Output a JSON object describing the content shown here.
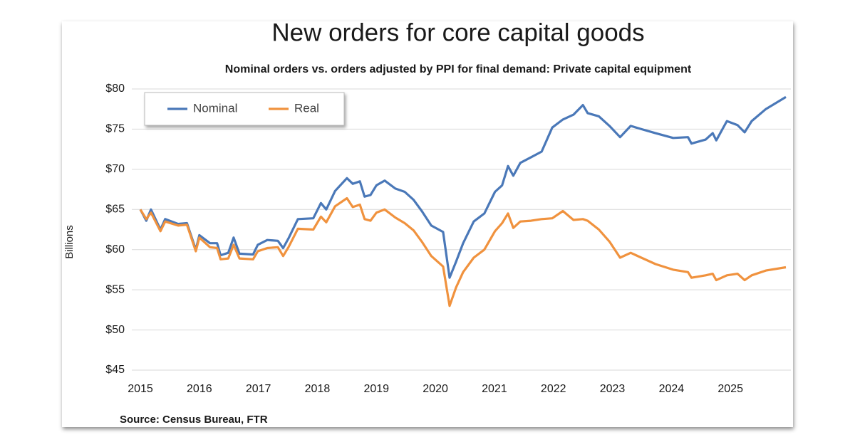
{
  "chart_data": {
    "type": "line",
    "title": "New orders for core capital goods",
    "subtitle": "Nominal orders vs. orders adjusted by PPI for final demand: Private capital equipment",
    "y_label": "Billions",
    "source": "Source: Census Bureau, FTR",
    "x": [
      2015.0,
      2015.1,
      2015.18,
      2015.34,
      2015.42,
      2015.64,
      2015.79,
      2015.94,
      2016.0,
      2016.18,
      2016.3,
      2016.36,
      2016.49,
      2016.58,
      2016.68,
      2016.91,
      2016.99,
      2017.15,
      2017.33,
      2017.42,
      2017.51,
      2017.67,
      2017.93,
      2018.06,
      2018.15,
      2018.3,
      2018.5,
      2018.6,
      2018.72,
      2018.8,
      2018.9,
      2019.0,
      2019.14,
      2019.32,
      2019.48,
      2019.63,
      2019.77,
      2019.93,
      2020.13,
      2020.24,
      2020.35,
      2020.47,
      2020.65,
      2020.83,
      2021.01,
      2021.13,
      2021.23,
      2021.32,
      2021.44,
      2021.62,
      2021.8,
      2021.98,
      2022.16,
      2022.34,
      2022.5,
      2022.58,
      2022.77,
      2022.95,
      2023.13,
      2023.31,
      2023.49,
      2023.73,
      2024.03,
      2024.28,
      2024.34,
      2024.58,
      2024.7,
      2024.76,
      2024.94,
      2025.12,
      2025.24,
      2025.36,
      2025.6,
      2025.94
    ],
    "series": [
      {
        "name": "Nominal",
        "color": "#4a78b8",
        "values": [
          65,
          63.6,
          65,
          62.5,
          63.8,
          63.2,
          63.3,
          60,
          61.8,
          60.8,
          60.8,
          59.3,
          59.6,
          61.5,
          59.5,
          59.4,
          60.6,
          61.2,
          61.1,
          60.2,
          61.4,
          63.8,
          63.9,
          65.8,
          65.0,
          67.3,
          68.9,
          68.2,
          68.5,
          66.6,
          66.8,
          68,
          68.6,
          67.6,
          67.2,
          66.2,
          64.8,
          63.0,
          62.2,
          56.5,
          58.5,
          60.8,
          63.5,
          64.5,
          67.2,
          68.0,
          70.4,
          69.2,
          70.8,
          71.5,
          72.2,
          75.2,
          76.2,
          76.8,
          78.0,
          77.0,
          76.6,
          75.4,
          74.0,
          75.4,
          75.0,
          74.5,
          73.9,
          74.0,
          73.2,
          73.7,
          74.5,
          73.6,
          76.0,
          75.5,
          74.6,
          76.0,
          77.5,
          79.0
        ]
      },
      {
        "name": "Real",
        "color": "#f0923e",
        "values": [
          65,
          63.8,
          64.6,
          62.3,
          63.5,
          63.0,
          63.1,
          59.8,
          61.5,
          60.3,
          60.2,
          58.8,
          58.9,
          60.6,
          58.9,
          58.8,
          59.8,
          60.2,
          60.3,
          59.2,
          60.3,
          62.6,
          62.5,
          64.1,
          63.4,
          65.4,
          66.4,
          65.3,
          65.6,
          63.8,
          63.6,
          64.6,
          65.0,
          64.0,
          63.3,
          62.4,
          61.0,
          59.2,
          57.9,
          53.0,
          55.3,
          57.2,
          59.0,
          60.0,
          62.3,
          63.3,
          64.5,
          62.7,
          63.5,
          63.6,
          63.8,
          63.9,
          64.8,
          63.7,
          63.8,
          63.6,
          62.5,
          61.0,
          59.0,
          59.6,
          59.0,
          58.2,
          57.5,
          57.2,
          56.5,
          56.8,
          57.0,
          56.2,
          56.8,
          57.0,
          56.2,
          56.8,
          57.4,
          57.8
        ]
      }
    ],
    "xlim": [
      2015,
      2026
    ],
    "xticks": [
      2015,
      2016,
      2017,
      2018,
      2019,
      2020,
      2021,
      2022,
      2023,
      2024,
      2025
    ],
    "ylim": [
      45,
      80
    ],
    "yticks": [
      {
        "value": 45,
        "label": "$45"
      },
      {
        "value": 50,
        "label": "$50"
      },
      {
        "value": 55,
        "label": "$55"
      },
      {
        "value": 60,
        "label": "$60"
      },
      {
        "value": 65,
        "label": "$65"
      },
      {
        "value": 70,
        "label": "$70"
      },
      {
        "value": 75,
        "label": "$75"
      },
      {
        "value": 80,
        "label": "$80"
      }
    ],
    "grid": true,
    "legend": "upper left"
  }
}
